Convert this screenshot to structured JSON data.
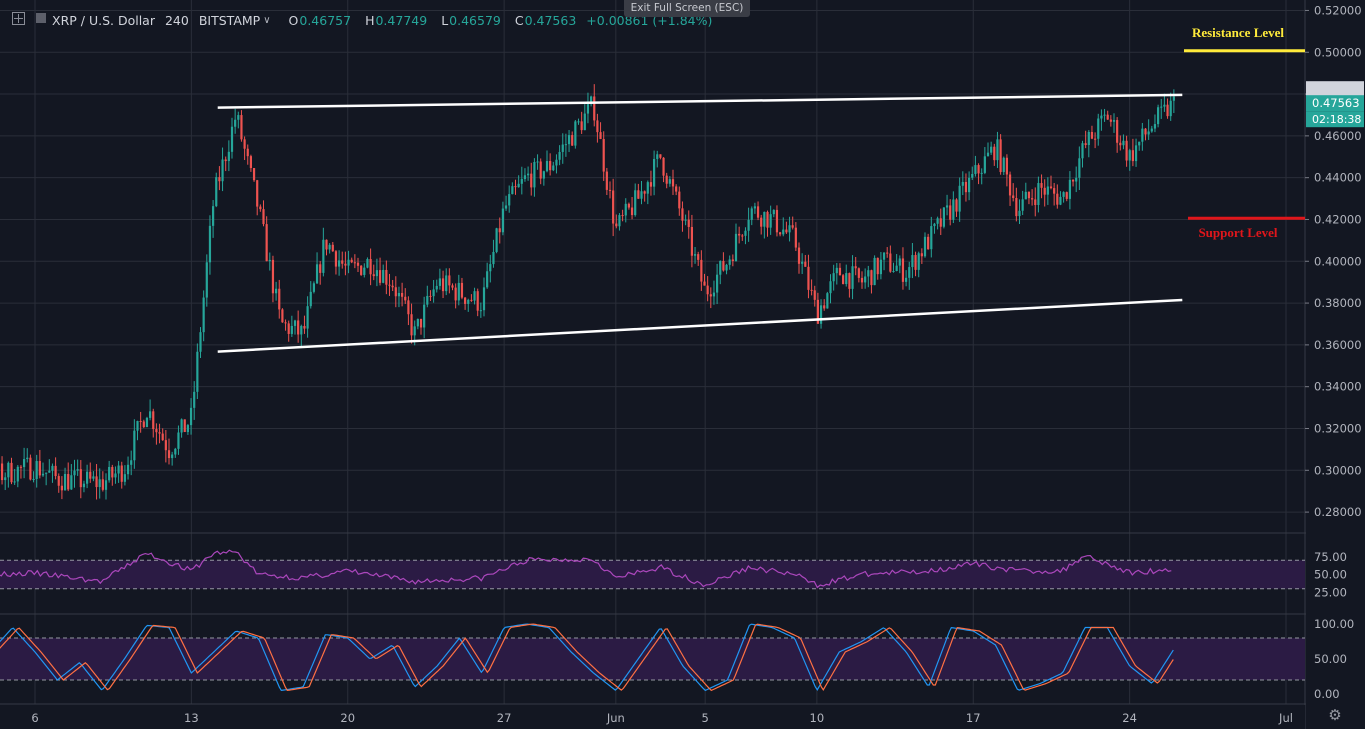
{
  "header": {
    "symbol": "XRP / U.S. Dollar",
    "interval": "240",
    "exchange": "BITSTAMP",
    "open_label": "O",
    "open": "0.46757",
    "high_label": "H",
    "high": "0.47749",
    "low_label": "L",
    "low": "0.46579",
    "close_label": "C",
    "close": "0.47563",
    "change": "+0.00861 (+1.84%)"
  },
  "exit_button": "Exit Full Screen (ESC)",
  "colors": {
    "background": "#131722",
    "grid": "#2a2e39",
    "up": "#26a69a",
    "down": "#ef5350",
    "rsi": "#ab47bc",
    "stoch_k": "#2196f3",
    "stoch_d": "#ff7043",
    "resistance": "#ffeb3b",
    "support": "#e0161b",
    "trendline": "#ffffff",
    "price_tag": "#26a69a",
    "panel_band": "#2b1b44"
  },
  "chart_data": {
    "type": "candlestick",
    "x_ticks": [
      "6",
      "13",
      "20",
      "27",
      "Jun",
      "5",
      "10",
      "17",
      "24",
      "Jul"
    ],
    "y_ticks": [
      "0.52000",
      "0.50000",
      "0.48000",
      "0.46000",
      "0.44000",
      "0.42000",
      "0.40000",
      "0.38000",
      "0.36000",
      "0.34000",
      "0.32000",
      "0.30000",
      "0.28000"
    ],
    "ylim": [
      0.27,
      0.525
    ],
    "last_price": "0.47563",
    "countdown": "02:18:38",
    "resistance": {
      "label": "Resistance Level",
      "value": 0.5007
    },
    "support": {
      "label": "Support Level",
      "value": 0.4206
    },
    "channel": {
      "upper": [
        {
          "date": "May 14",
          "value": 0.4735
        },
        {
          "date": "Jun 26",
          "value": 0.4796
        }
      ],
      "lower": [
        {
          "date": "May 14",
          "value": 0.3568
        },
        {
          "date": "Jun 26",
          "value": 0.3815
        }
      ]
    },
    "price_path": [
      {
        "date": "May 1",
        "value": 0.3
      },
      {
        "date": "May 4",
        "value": 0.297
      },
      {
        "date": "May 6",
        "value": 0.302
      },
      {
        "date": "May 7",
        "value": 0.296
      },
      {
        "date": "May 9",
        "value": 0.294
      },
      {
        "date": "May 10",
        "value": 0.301
      },
      {
        "date": "May 11",
        "value": 0.33
      },
      {
        "date": "May 12",
        "value": 0.31
      },
      {
        "date": "May 13",
        "value": 0.325
      },
      {
        "date": "May 14",
        "value": 0.43
      },
      {
        "date": "May 15",
        "value": 0.47
      },
      {
        "date": "May 16",
        "value": 0.425
      },
      {
        "date": "May 17",
        "value": 0.37
      },
      {
        "date": "May 18",
        "value": 0.365
      },
      {
        "date": "May 19",
        "value": 0.41
      },
      {
        "date": "May 20",
        "value": 0.395
      },
      {
        "date": "May 21",
        "value": 0.4
      },
      {
        "date": "May 22",
        "value": 0.39
      },
      {
        "date": "May 23",
        "value": 0.365
      },
      {
        "date": "May 24",
        "value": 0.39
      },
      {
        "date": "May 25",
        "value": 0.385
      },
      {
        "date": "May 26",
        "value": 0.38
      },
      {
        "date": "May 27",
        "value": 0.425
      },
      {
        "date": "May 28",
        "value": 0.44
      },
      {
        "date": "May 29",
        "value": 0.445
      },
      {
        "date": "May 30",
        "value": 0.46
      },
      {
        "date": "May 31",
        "value": 0.475
      },
      {
        "date": "Jun 1",
        "value": 0.415
      },
      {
        "date": "Jun 2",
        "value": 0.43
      },
      {
        "date": "Jun 3",
        "value": 0.45
      },
      {
        "date": "Jun 4",
        "value": 0.42
      },
      {
        "date": "Jun 5",
        "value": 0.385
      },
      {
        "date": "Jun 6",
        "value": 0.4
      },
      {
        "date": "Jun 7",
        "value": 0.425
      },
      {
        "date": "Jun 8",
        "value": 0.42
      },
      {
        "date": "Jun 9",
        "value": 0.41
      },
      {
        "date": "Jun 10",
        "value": 0.375
      },
      {
        "date": "Jun 11",
        "value": 0.395
      },
      {
        "date": "Jun 12",
        "value": 0.39
      },
      {
        "date": "Jun 13",
        "value": 0.4
      },
      {
        "date": "Jun 14",
        "value": 0.395
      },
      {
        "date": "Jun 15",
        "value": 0.41
      },
      {
        "date": "Jun 16",
        "value": 0.425
      },
      {
        "date": "Jun 17",
        "value": 0.44
      },
      {
        "date": "Jun 18",
        "value": 0.455
      },
      {
        "date": "Jun 19",
        "value": 0.425
      },
      {
        "date": "Jun 20",
        "value": 0.435
      },
      {
        "date": "Jun 21",
        "value": 0.43
      },
      {
        "date": "Jun 22",
        "value": 0.455
      },
      {
        "date": "Jun 23",
        "value": 0.47
      },
      {
        "date": "Jun 24",
        "value": 0.45
      },
      {
        "date": "Jun 25",
        "value": 0.465
      },
      {
        "date": "Jun 26",
        "value": 0.4756
      }
    ],
    "rsi": {
      "ticks": [
        "75.00",
        "50.00",
        "25.00"
      ],
      "levels": [
        30,
        70
      ],
      "path": [
        {
          "date": "May 1",
          "value": 45
        },
        {
          "date": "May 6",
          "value": 52
        },
        {
          "date": "May 9",
          "value": 40
        },
        {
          "date": "May 11",
          "value": 80
        },
        {
          "date": "May 13",
          "value": 55
        },
        {
          "date": "May 14",
          "value": 80
        },
        {
          "date": "May 15",
          "value": 82
        },
        {
          "date": "May 16",
          "value": 50
        },
        {
          "date": "May 18",
          "value": 45
        },
        {
          "date": "May 20",
          "value": 55
        },
        {
          "date": "May 23",
          "value": 40
        },
        {
          "date": "May 26",
          "value": 45
        },
        {
          "date": "May 28",
          "value": 70
        },
        {
          "date": "May 31",
          "value": 72
        },
        {
          "date": "Jun 1",
          "value": 45
        },
        {
          "date": "Jun 3",
          "value": 60
        },
        {
          "date": "Jun 5",
          "value": 35
        },
        {
          "date": "Jun 7",
          "value": 60
        },
        {
          "date": "Jun 9",
          "value": 50
        },
        {
          "date": "Jun 10",
          "value": 35
        },
        {
          "date": "Jun 12",
          "value": 50
        },
        {
          "date": "Jun 15",
          "value": 55
        },
        {
          "date": "Jun 17",
          "value": 65
        },
        {
          "date": "Jun 19",
          "value": 55
        },
        {
          "date": "Jun 21",
          "value": 55
        },
        {
          "date": "Jun 22",
          "value": 78
        },
        {
          "date": "Jun 24",
          "value": 52
        },
        {
          "date": "Jun 26",
          "value": 58
        }
      ]
    },
    "stochastic": {
      "ticks": [
        "100.00",
        "50.00",
        "0.00"
      ],
      "levels": [
        20,
        80
      ],
      "k_path": [
        {
          "date": "May 1",
          "value": 30
        },
        {
          "date": "May 2",
          "value": 10
        },
        {
          "date": "May 3",
          "value": 5
        },
        {
          "date": "May 4",
          "value": 60
        },
        {
          "date": "May 5",
          "value": 95
        },
        {
          "date": "May 6",
          "value": 60
        },
        {
          "date": "May 7",
          "value": 20
        },
        {
          "date": "May 8",
          "value": 45
        },
        {
          "date": "May 9",
          "value": 5
        },
        {
          "date": "May 10",
          "value": 50
        },
        {
          "date": "May 11",
          "value": 98
        },
        {
          "date": "May 12",
          "value": 95
        },
        {
          "date": "May 13",
          "value": 30
        },
        {
          "date": "May 14",
          "value": 60
        },
        {
          "date": "May 15",
          "value": 90
        },
        {
          "date": "May 16",
          "value": 80
        },
        {
          "date": "May 17",
          "value": 5
        },
        {
          "date": "May 18",
          "value": 10
        },
        {
          "date": "May 19",
          "value": 85
        },
        {
          "date": "May 20",
          "value": 80
        },
        {
          "date": "May 21",
          "value": 50
        },
        {
          "date": "May 22",
          "value": 70
        },
        {
          "date": "May 23",
          "value": 10
        },
        {
          "date": "May 24",
          "value": 40
        },
        {
          "date": "May 25",
          "value": 80
        },
        {
          "date": "May 26",
          "value": 30
        },
        {
          "date": "May 27",
          "value": 95
        },
        {
          "date": "May 28",
          "value": 100
        },
        {
          "date": "May 29",
          "value": 95
        },
        {
          "date": "May 30",
          "value": 60
        },
        {
          "date": "May 31",
          "value": 30
        },
        {
          "date": "Jun 1",
          "value": 5
        },
        {
          "date": "Jun 2",
          "value": 50
        },
        {
          "date": "Jun 3",
          "value": 95
        },
        {
          "date": "Jun 4",
          "value": 40
        },
        {
          "date": "Jun 5",
          "value": 5
        },
        {
          "date": "Jun 6",
          "value": 20
        },
        {
          "date": "Jun 7",
          "value": 100
        },
        {
          "date": "Jun 8",
          "value": 95
        },
        {
          "date": "Jun 9",
          "value": 80
        },
        {
          "date": "Jun 10",
          "value": 5
        },
        {
          "date": "Jun 11",
          "value": 60
        },
        {
          "date": "Jun 12",
          "value": 75
        },
        {
          "date": "Jun 13",
          "value": 95
        },
        {
          "date": "Jun 14",
          "value": 60
        },
        {
          "date": "Jun 15",
          "value": 10
        },
        {
          "date": "Jun 16",
          "value": 95
        },
        {
          "date": "Jun 17",
          "value": 90
        },
        {
          "date": "Jun 18",
          "value": 70
        },
        {
          "date": "Jun 19",
          "value": 5
        },
        {
          "date": "Jun 20",
          "value": 15
        },
        {
          "date": "Jun 21",
          "value": 30
        },
        {
          "date": "Jun 22",
          "value": 95
        },
        {
          "date": "Jun 23",
          "value": 95
        },
        {
          "date": "Jun 24",
          "value": 40
        },
        {
          "date": "Jun 25",
          "value": 15
        },
        {
          "date": "Jun 26",
          "value": 65
        }
      ]
    }
  }
}
